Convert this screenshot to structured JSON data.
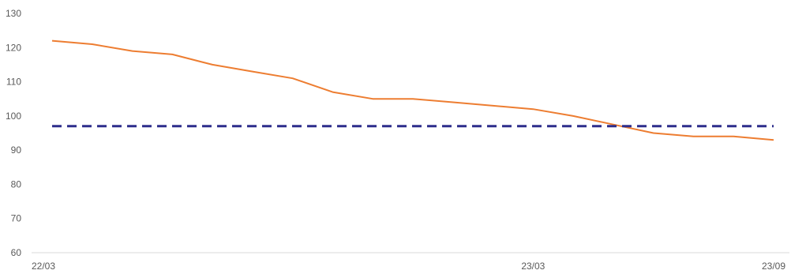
{
  "chart_data": {
    "type": "line",
    "title": "",
    "xlabel": "",
    "ylabel": "",
    "ylim": [
      60,
      130
    ],
    "yticks": [
      60,
      70,
      80,
      90,
      100,
      110,
      120,
      130
    ],
    "xticks": [
      {
        "label": "22/03",
        "x": 0
      },
      {
        "label": "23/03",
        "x": 12
      },
      {
        "label": "23/09",
        "x": 18
      }
    ],
    "x_range": [
      0,
      18
    ],
    "grid": false,
    "legend": "none",
    "series": [
      {
        "color": "#ED7D31",
        "style": "solid",
        "x": [
          0,
          1,
          2,
          3,
          4,
          5,
          6,
          7,
          8,
          9,
          10,
          11,
          12,
          13,
          14,
          15,
          16,
          17,
          18
        ],
        "values": [
          122,
          121,
          119,
          118,
          115,
          113,
          111,
          107,
          105,
          105,
          104,
          103,
          102,
          100,
          97.5,
          95,
          94,
          94,
          93
        ]
      },
      {
        "color": "#2E2E8C",
        "style": "dashed",
        "x": [
          0,
          18
        ],
        "values": [
          97,
          97
        ]
      }
    ]
  }
}
